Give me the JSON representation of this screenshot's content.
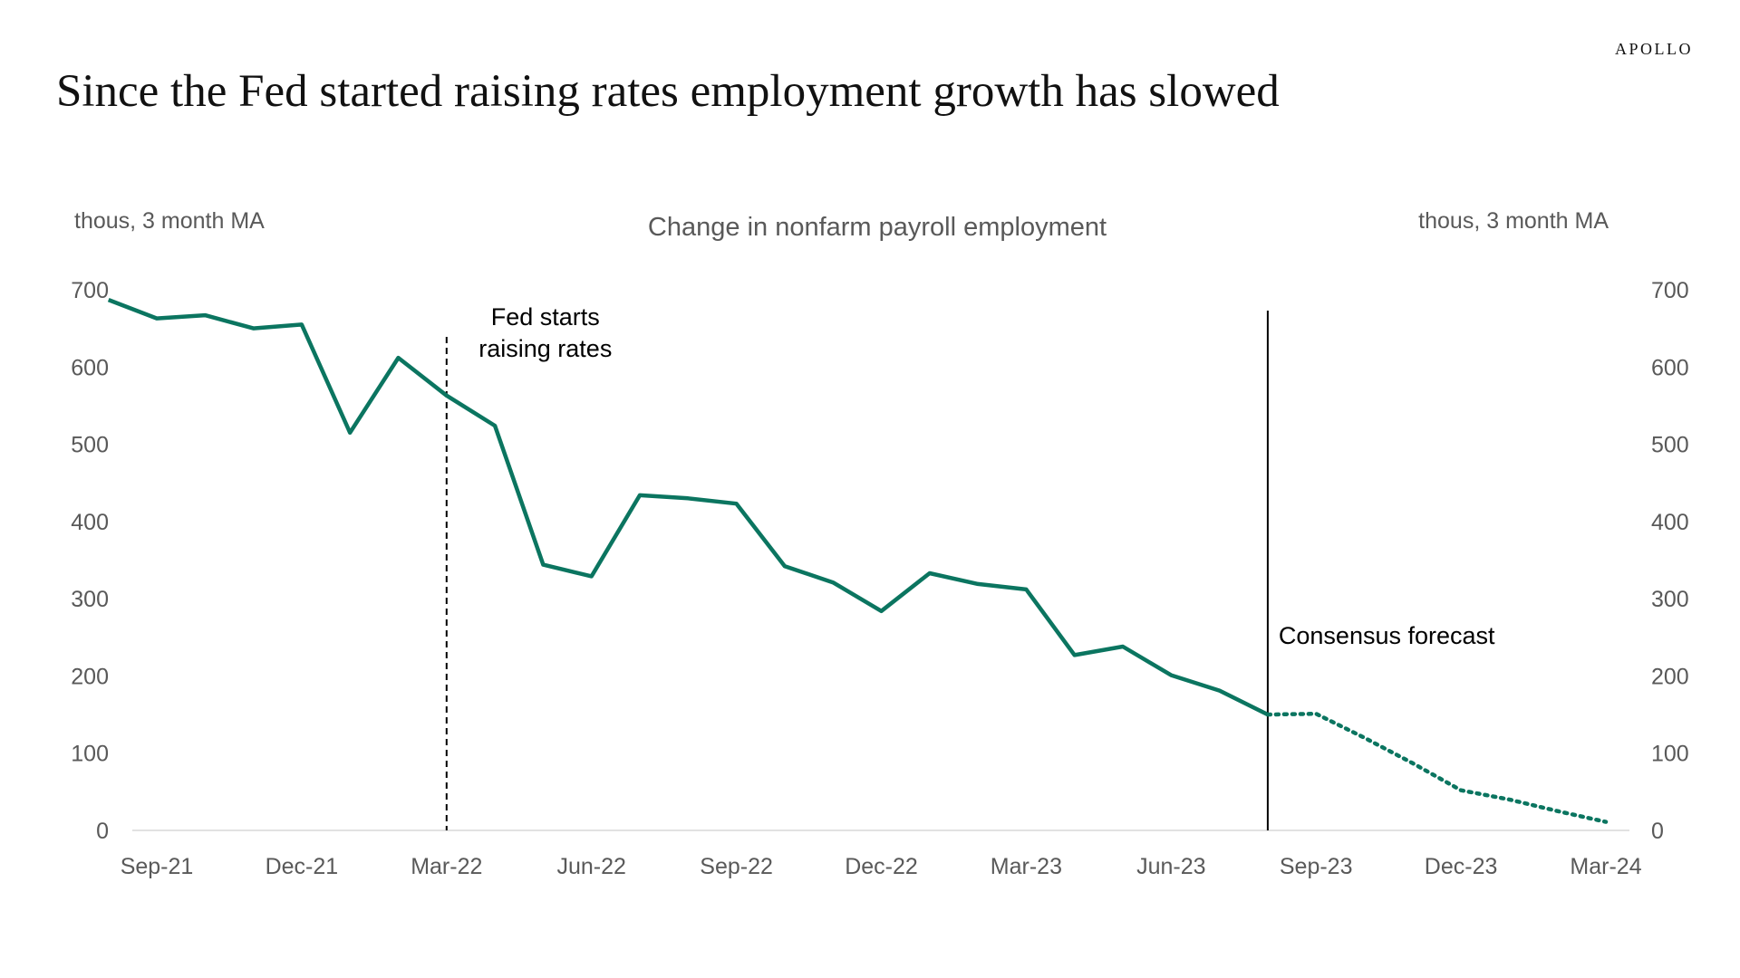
{
  "brand": "APOLLO",
  "title": "Since the Fed started raising rates employment growth has slowed",
  "colors": {
    "series": "#0b7560",
    "axis": "#d9d9d9",
    "text": "#595959",
    "annotation": "#000000"
  },
  "chart_data": {
    "type": "line",
    "title": "Change in nonfarm payroll employment",
    "ylabel_left": "thous, 3 month MA",
    "ylabel_right": "thous, 3 month MA",
    "ylim": [
      0,
      700
    ],
    "yticks": [
      0,
      100,
      200,
      300,
      400,
      500,
      600,
      700
    ],
    "xlim": [
      "2021-09",
      "2024-03"
    ],
    "xticks": [
      {
        "date": "2021-09",
        "label": "Sep-21"
      },
      {
        "date": "2021-12",
        "label": "Dec-21"
      },
      {
        "date": "2022-03",
        "label": "Mar-22"
      },
      {
        "date": "2022-06",
        "label": "Jun-22"
      },
      {
        "date": "2022-09",
        "label": "Sep-22"
      },
      {
        "date": "2022-12",
        "label": "Dec-22"
      },
      {
        "date": "2023-03",
        "label": "Mar-23"
      },
      {
        "date": "2023-06",
        "label": "Jun-23"
      },
      {
        "date": "2023-09",
        "label": "Sep-23"
      },
      {
        "date": "2023-12",
        "label": "Dec-23"
      },
      {
        "date": "2024-03",
        "label": "Mar-24"
      }
    ],
    "grid": false,
    "series": [
      {
        "style": "solid",
        "points": [
          [
            "2021-08",
            687
          ],
          [
            "2021-09",
            663
          ],
          [
            "2021-10",
            667
          ],
          [
            "2021-11",
            650
          ],
          [
            "2021-12",
            655
          ],
          [
            "2022-01",
            515
          ],
          [
            "2022-02",
            612
          ],
          [
            "2022-03",
            563
          ],
          [
            "2022-04",
            524
          ],
          [
            "2022-05",
            344
          ],
          [
            "2022-06",
            329
          ],
          [
            "2022-07",
            434
          ],
          [
            "2022-08",
            430
          ],
          [
            "2022-09",
            423
          ],
          [
            "2022-10",
            342
          ],
          [
            "2022-11",
            321
          ],
          [
            "2022-12",
            284
          ],
          [
            "2023-01",
            333
          ],
          [
            "2023-02",
            319
          ],
          [
            "2023-03",
            312
          ],
          [
            "2023-04",
            227
          ],
          [
            "2023-05",
            238
          ],
          [
            "2023-06",
            201
          ],
          [
            "2023-07",
            181
          ],
          [
            "2023-08",
            150
          ]
        ]
      },
      {
        "style": "dotted",
        "points": [
          [
            "2023-08",
            150
          ],
          [
            "2023-09",
            151
          ],
          [
            "2023-10",
            120
          ],
          [
            "2023-11",
            87
          ],
          [
            "2023-12",
            52
          ],
          [
            "2024-01",
            40
          ],
          [
            "2024-02",
            25
          ],
          [
            "2024-03",
            11
          ]
        ]
      }
    ],
    "annotations": [
      {
        "date": "2022-03",
        "style": "dashed",
        "text_lines": [
          "Fed starts",
          "raising rates"
        ]
      },
      {
        "date": "2023-08",
        "style": "solid",
        "text_lines": [
          "Consensus forecast"
        ]
      }
    ]
  }
}
